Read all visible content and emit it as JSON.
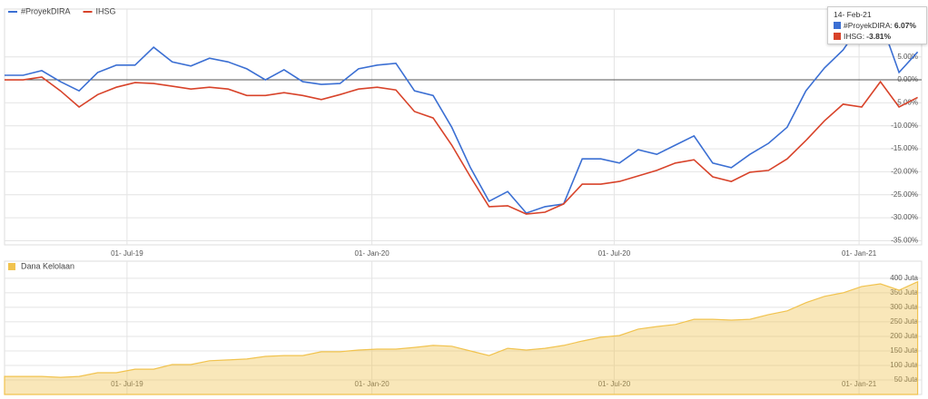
{
  "chart_data": [
    {
      "type": "line",
      "x": [
        "2019-03-31",
        "2019-04-14",
        "2019-04-28",
        "2019-05-12",
        "2019-05-26",
        "2019-06-09",
        "2019-06-23",
        "2019-07-07",
        "2019-07-21",
        "2019-08-04",
        "2019-08-18",
        "2019-09-01",
        "2019-09-15",
        "2019-09-29",
        "2019-10-13",
        "2019-10-27",
        "2019-11-10",
        "2019-11-24",
        "2019-12-08",
        "2019-12-22",
        "2020-01-05",
        "2020-01-19",
        "2020-02-02",
        "2020-02-16",
        "2020-03-01",
        "2020-03-15",
        "2020-03-29",
        "2020-04-12",
        "2020-04-26",
        "2020-05-10",
        "2020-05-24",
        "2020-06-07",
        "2020-06-21",
        "2020-07-05",
        "2020-07-19",
        "2020-08-02",
        "2020-08-16",
        "2020-08-30",
        "2020-09-13",
        "2020-09-27",
        "2020-10-11",
        "2020-10-25",
        "2020-11-08",
        "2020-11-22",
        "2020-12-06",
        "2020-12-20",
        "2021-01-03",
        "2021-01-17",
        "2021-01-31",
        "2021-02-14"
      ],
      "series": [
        {
          "name": "#ProyekDIRA",
          "color": "#3b6fd3",
          "values": [
            1.0,
            1.0,
            2.0,
            -0.4,
            -2.4,
            1.6,
            3.2,
            3.2,
            7.1,
            3.9,
            3.0,
            4.7,
            3.9,
            2.4,
            0,
            2.2,
            -0.4,
            -1.0,
            -0.8,
            2.4,
            3.2,
            3.6,
            -2.4,
            -3.4,
            -10.3,
            -19.1,
            -26.4,
            -24.3,
            -29.0,
            -27.6,
            -27.0,
            -17.2,
            -17.2,
            -18.1,
            -15.2,
            -16.2,
            -14.2,
            -12.2,
            -18.1,
            -19.1,
            -16.2,
            -13.8,
            -10.3,
            -2.4,
            2.6,
            6.5,
            12.4,
            13.0,
            1.6,
            6.07
          ]
        },
        {
          "name": "IHSG",
          "color": "#d8432a",
          "values": [
            0,
            0,
            0.6,
            -2.4,
            -5.9,
            -3.2,
            -1.6,
            -0.6,
            -0.8,
            -1.4,
            -2.0,
            -1.6,
            -2.0,
            -3.4,
            -3.4,
            -2.8,
            -3.4,
            -4.3,
            -3.2,
            -2.0,
            -1.6,
            -2.2,
            -6.9,
            -8.3,
            -14.2,
            -21.1,
            -27.6,
            -27.4,
            -29.2,
            -28.8,
            -27.0,
            -22.7,
            -22.7,
            -22.1,
            -20.9,
            -19.7,
            -18.1,
            -17.4,
            -21.1,
            -22.1,
            -20.1,
            -19.7,
            -17.2,
            -13.2,
            -8.9,
            -5.3,
            -5.9,
            -0.4,
            -5.9,
            -3.81
          ]
        }
      ],
      "xlim": [
        "2019-03-31",
        "2021-02-17"
      ],
      "xticks": [
        {
          "value": "2019-07-01",
          "label": "01- Jul-19"
        },
        {
          "value": "2020-01-01",
          "label": "01- Jan-20"
        },
        {
          "value": "2020-07-01",
          "label": "01- Jul-20"
        },
        {
          "value": "2021-01-01",
          "label": "01- Jan-21"
        }
      ],
      "ylim": [
        -35.9,
        15.4
      ],
      "yticks": [
        {
          "value": 5,
          "label": "5.00%"
        },
        {
          "value": 0,
          "label": "0.00%"
        },
        {
          "value": -5,
          "label": "-5.00%"
        },
        {
          "value": -10,
          "label": "-10.00%"
        },
        {
          "value": -15,
          "label": "-15.00%"
        },
        {
          "value": -20,
          "label": "-20.00%"
        },
        {
          "value": -25,
          "label": "-25.00%"
        },
        {
          "value": -30,
          "label": "-30.00%"
        },
        {
          "value": -35,
          "label": "-35.00%"
        }
      ],
      "grid": true,
      "tooltip": {
        "title": "14- Feb-21",
        "labels": [
          "6.07%",
          "-3.81%"
        ]
      }
    },
    {
      "type": "area",
      "x": [
        "2019-03-31",
        "2019-04-14",
        "2019-04-28",
        "2019-05-12",
        "2019-05-26",
        "2019-06-09",
        "2019-06-23",
        "2019-07-07",
        "2019-07-21",
        "2019-08-04",
        "2019-08-18",
        "2019-09-01",
        "2019-09-15",
        "2019-09-29",
        "2019-10-13",
        "2019-10-27",
        "2019-11-10",
        "2019-11-24",
        "2019-12-08",
        "2019-12-22",
        "2020-01-05",
        "2020-01-19",
        "2020-02-02",
        "2020-02-16",
        "2020-03-01",
        "2020-03-15",
        "2020-03-29",
        "2020-04-12",
        "2020-04-26",
        "2020-05-10",
        "2020-05-24",
        "2020-06-07",
        "2020-06-21",
        "2020-07-05",
        "2020-07-19",
        "2020-08-02",
        "2020-08-16",
        "2020-08-30",
        "2020-09-13",
        "2020-09-27",
        "2020-10-11",
        "2020-10-25",
        "2020-11-08",
        "2020-11-22",
        "2020-12-06",
        "2020-12-20",
        "2021-01-03",
        "2021-01-17",
        "2021-01-31",
        "2021-02-14"
      ],
      "series": [
        {
          "name": "Dana Kelolaan",
          "color": "#f1c34f",
          "values": [
            62,
            62,
            62,
            59,
            62,
            75,
            75,
            87,
            87,
            103,
            103,
            116,
            119,
            122,
            131,
            134,
            134,
            147,
            147,
            153,
            156,
            156,
            162,
            169,
            166,
            150,
            134,
            159,
            153,
            159,
            169,
            184,
            197,
            203,
            225,
            234,
            241,
            259,
            259,
            256,
            259,
            275,
            288,
            316,
            338,
            350,
            372,
            381,
            359,
            388
          ]
        }
      ],
      "xlim": [
        "2019-03-31",
        "2021-02-17"
      ],
      "xticks": [
        {
          "value": "2019-07-01",
          "label": "01- Jul-19"
        },
        {
          "value": "2020-01-01",
          "label": "01- Jan-20"
        },
        {
          "value": "2020-07-01",
          "label": "01- Jul-20"
        },
        {
          "value": "2021-01-01",
          "label": "01- Jan-21"
        }
      ],
      "ylim": [
        0,
        459
      ],
      "yticks": [
        {
          "value": 50,
          "label": "50 Juta"
        },
        {
          "value": 100,
          "label": "100 Juta"
        },
        {
          "value": 150,
          "label": "150 Juta"
        },
        {
          "value": 200,
          "label": "200 Juta"
        },
        {
          "value": 250,
          "label": "250 Juta"
        },
        {
          "value": 300,
          "label": "300 Juta"
        },
        {
          "value": 350,
          "label": "350 Juta"
        },
        {
          "value": 400,
          "label": "400 Juta"
        }
      ],
      "grid": true
    }
  ]
}
